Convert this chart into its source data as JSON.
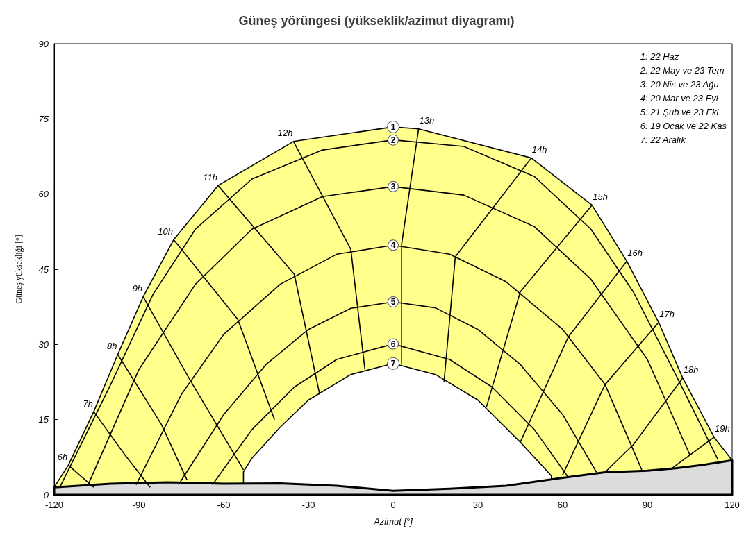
{
  "chart_data": {
    "type": "line",
    "title": "Güneş yörüngesi (yükseklik/azimut diyagramı)",
    "xlabel": "Azimut [°]",
    "ylabel": "Güneş yüksekliği [°]",
    "xlim": [
      -120,
      120
    ],
    "xticks": [
      -120,
      -90,
      -60,
      -30,
      0,
      30,
      60,
      90,
      120
    ],
    "ylim": [
      0,
      90
    ],
    "yticks": [
      0,
      15,
      30,
      45,
      60,
      75,
      90
    ],
    "grid": false,
    "legend": false,
    "marker": "none",
    "annotations": [
      "1: 22 Haz",
      "2: 22 May ve 23 Tem",
      "3: 20 Nis ve 23 Ağu",
      "4: 20 Mar ve 23 Eyl",
      "5: 21 Şub ve 23 Eki",
      "6: 19 Ocak ve 22 Kas",
      "7: 22 Aralık"
    ],
    "series": [
      {
        "name": "1",
        "type": "area",
        "color": "#ffff8c",
        "x": [
          -120,
          -115,
          -106,
          -97.5,
          -88.5,
          -77.7,
          -62,
          -35.3,
          0,
          9,
          48.9,
          70.4,
          82.7,
          94,
          102.5,
          113.6,
          120
        ],
        "values": [
          1.5,
          5.9,
          16.6,
          28,
          39.5,
          50.9,
          61.7,
          70.5,
          73.4,
          73,
          67.2,
          57.8,
          46.6,
          34.4,
          23.3,
          11.5,
          6.9
        ]
      },
      {
        "name": "7",
        "type": "area",
        "color": "#ffffff",
        "x": [
          -53,
          -50,
          -40,
          -30,
          -15,
          0,
          15,
          30,
          45,
          56
        ],
        "values": [
          4.6,
          7.3,
          13.5,
          18.9,
          24,
          26.2,
          24,
          18.9,
          10.5,
          3.8
        ]
      },
      {
        "type": "area",
        "color": "#dcdcdc",
        "x": [
          -120,
          -100,
          -80,
          -60,
          -40,
          -20,
          0,
          20,
          40,
          60,
          75,
          90,
          100,
          110,
          120
        ],
        "values": [
          1.5,
          2.2,
          2.5,
          2.2,
          2.3,
          1.8,
          0.8,
          1.2,
          1.8,
          3.4,
          4.5,
          4.8,
          5.3,
          6,
          6.9
        ]
      },
      {
        "name": "2",
        "color": "#000000",
        "x": [
          -118,
          -100,
          -85,
          -70,
          -50,
          -25,
          0,
          25,
          50,
          70,
          85,
          100,
          115
        ],
        "values": [
          1.5,
          22,
          40,
          53,
          63,
          68.8,
          70.8,
          69.5,
          63.5,
          53,
          40.5,
          24,
          7
        ]
      },
      {
        "name": "3",
        "color": "#000000",
        "x": [
          -108,
          -90,
          -70,
          -50,
          -25,
          0,
          25,
          50,
          70,
          90,
          105
        ],
        "values": [
          2,
          25,
          42,
          53,
          59.5,
          61.5,
          59.8,
          53.5,
          43,
          27,
          8
        ]
      },
      {
        "name": "4",
        "color": "#000000",
        "x": [
          -91,
          -75,
          -60,
          -40,
          -20,
          0,
          20,
          40,
          60,
          75,
          88
        ],
        "values": [
          2,
          20,
          32,
          42,
          48,
          49.8,
          48,
          42.5,
          33,
          22,
          5
        ]
      },
      {
        "name": "5",
        "color": "#000000",
        "x": [
          -76,
          -60,
          -45,
          -30,
          -15,
          0,
          15,
          30,
          45,
          60,
          72
        ],
        "values": [
          2,
          16,
          26,
          33,
          37.2,
          38.5,
          37.3,
          33,
          26,
          16,
          4.5
        ]
      },
      {
        "name": "6",
        "color": "#000000",
        "x": [
          -64,
          -50,
          -35,
          -20,
          0,
          20,
          35,
          50,
          62
        ],
        "values": [
          2,
          13,
          21.5,
          27,
          30.1,
          27,
          21.5,
          13,
          3.5
        ]
      },
      {
        "name": "6h",
        "color": "#000000",
        "x": [
          -115,
          -106
        ],
        "values": [
          5.9,
          1.5
        ]
      },
      {
        "name": "7h",
        "color": "#000000",
        "x": [
          -106,
          -95,
          -86
        ],
        "values": [
          16.6,
          8,
          1.5
        ]
      },
      {
        "name": "8h",
        "color": "#000000",
        "x": [
          -97.5,
          -82,
          -73
        ],
        "values": [
          28,
          14,
          3
        ]
      },
      {
        "name": "9h",
        "color": "#000000",
        "x": [
          -88.5,
          -72,
          -53
        ],
        "values": [
          39.5,
          23,
          5
        ]
      },
      {
        "name": "10h",
        "color": "#000000",
        "x": [
          -77.7,
          -55,
          -42
        ],
        "values": [
          50.9,
          35,
          15
        ]
      },
      {
        "name": "11h",
        "color": "#000000",
        "x": [
          -62,
          -35,
          -26
        ],
        "values": [
          61.7,
          44,
          20
        ]
      },
      {
        "name": "12h",
        "color": "#000000",
        "x": [
          -35.3,
          -15,
          -10
        ],
        "values": [
          70.5,
          49,
          25
        ]
      },
      {
        "name": "13h",
        "color": "#000000",
        "x": [
          9,
          3,
          3
        ],
        "values": [
          73,
          50,
          26
        ]
      },
      {
        "name": "14h",
        "color": "#000000",
        "x": [
          48.9,
          22,
          18
        ],
        "values": [
          67.2,
          47.5,
          22.5
        ]
      },
      {
        "name": "15h",
        "color": "#000000",
        "x": [
          70.4,
          45,
          33
        ],
        "values": [
          57.8,
          40.5,
          17.5
        ]
      },
      {
        "name": "16h",
        "color": "#000000",
        "x": [
          82.7,
          62,
          45
        ],
        "values": [
          46.6,
          31.5,
          10.5
        ]
      },
      {
        "name": "17h",
        "color": "#000000",
        "x": [
          94,
          75,
          60
        ],
        "values": [
          34.4,
          22,
          4
        ]
      },
      {
        "name": "18h",
        "color": "#000000",
        "x": [
          102.5,
          85,
          75
        ],
        "values": [
          23.3,
          10,
          4.5
        ]
      },
      {
        "name": "19h",
        "color": "#000000",
        "x": [
          113.6,
          98
        ],
        "values": [
          11.5,
          5
        ]
      }
    ]
  }
}
